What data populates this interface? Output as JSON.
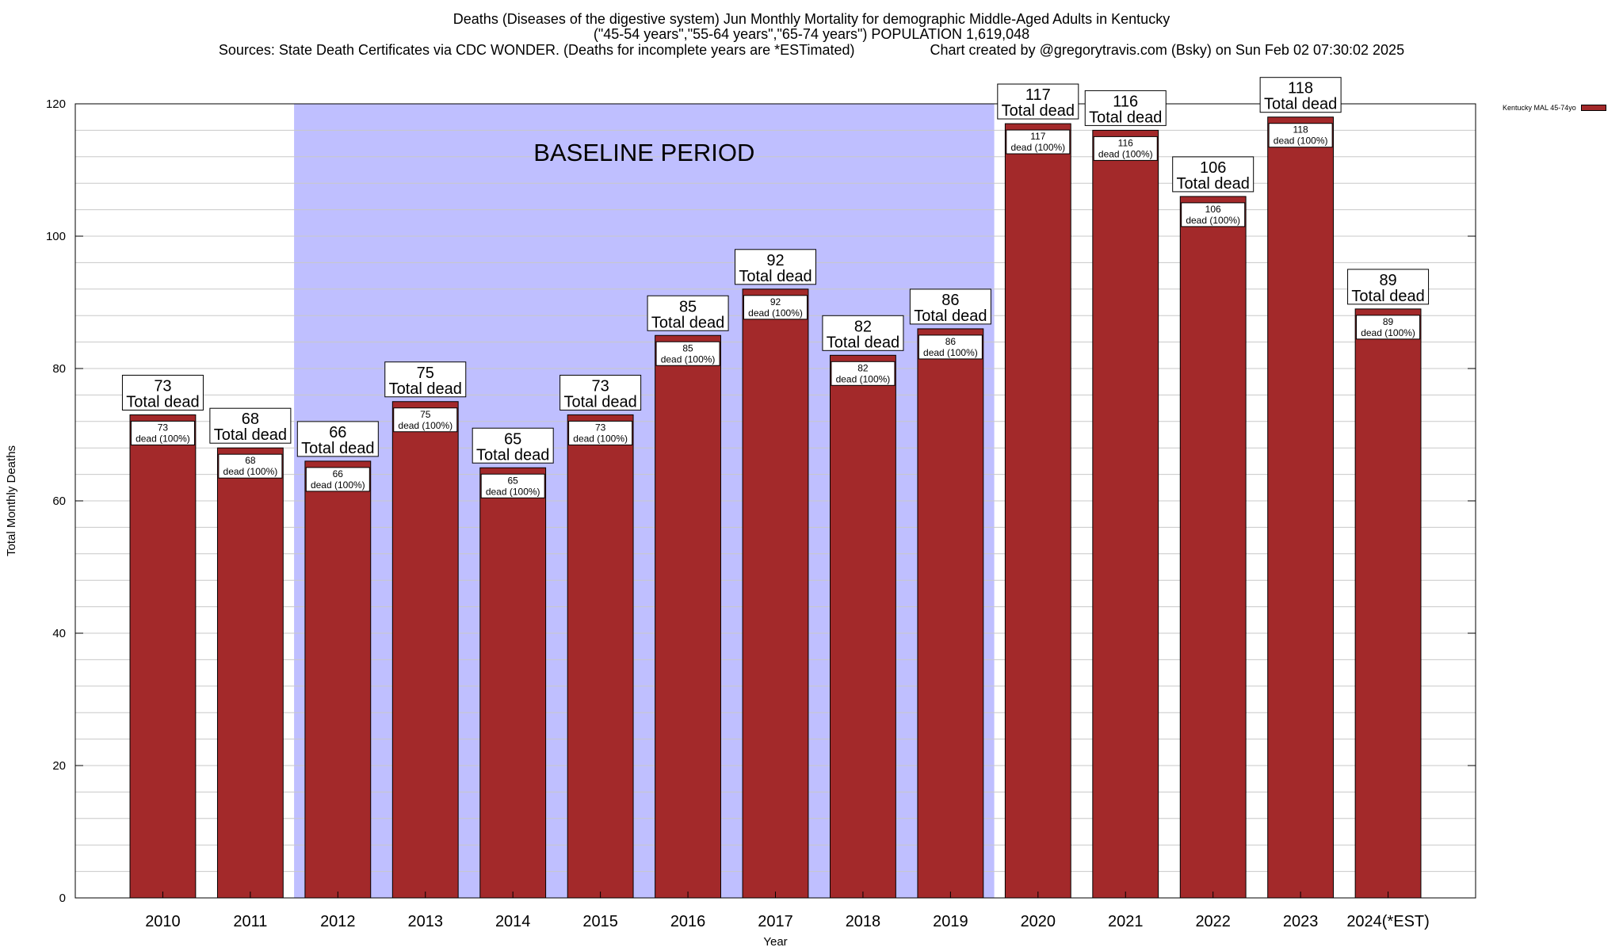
{
  "header": {
    "title_line1": "Deaths (Diseases of the digestive system) Jun Monthly Mortality for demographic Middle-Aged Adults in Kentucky",
    "title_line2": "(\"45-54 years\",\"55-64 years\",\"65-74 years\") POPULATION 1,619,048",
    "sources": "Sources: State Death Certificates via CDC WONDER. (Deaths for incomplete years are *ESTimated)",
    "credit": "Chart created by @gregorytravis.com (Bsky) on Sun Feb 02 07:30:02 2025"
  },
  "legend": {
    "label": "Kentucky MAL 45-74yo"
  },
  "colors": {
    "bar": "#a3292a",
    "baseline": "#bfbfff",
    "grid": "#c8c8c8"
  },
  "chart_data": {
    "type": "bar",
    "title": "Deaths (Diseases of the digestive system) Jun Monthly Mortality for demographic Middle-Aged Adults in Kentucky",
    "xlabel": "Year",
    "ylabel": "Total Monthly Deaths",
    "ylim": [
      0,
      120
    ],
    "yticks": [
      0,
      20,
      40,
      60,
      80,
      100,
      120
    ],
    "categories": [
      "2010",
      "2011",
      "2012",
      "2013",
      "2014",
      "2015",
      "2016",
      "2017",
      "2018",
      "2019",
      "2020",
      "2021",
      "2022",
      "2023",
      "2024(*EST)"
    ],
    "series": [
      {
        "name": "Kentucky MAL 45-74yo",
        "values": [
          73,
          68,
          66,
          75,
          65,
          73,
          85,
          92,
          82,
          86,
          117,
          116,
          106,
          118,
          89
        ]
      }
    ],
    "total_label": "Total dead",
    "inner_label_suffix": "dead (100%)",
    "baseline": {
      "label": "BASELINE PERIOD",
      "from": "2012",
      "to": "2019"
    }
  }
}
